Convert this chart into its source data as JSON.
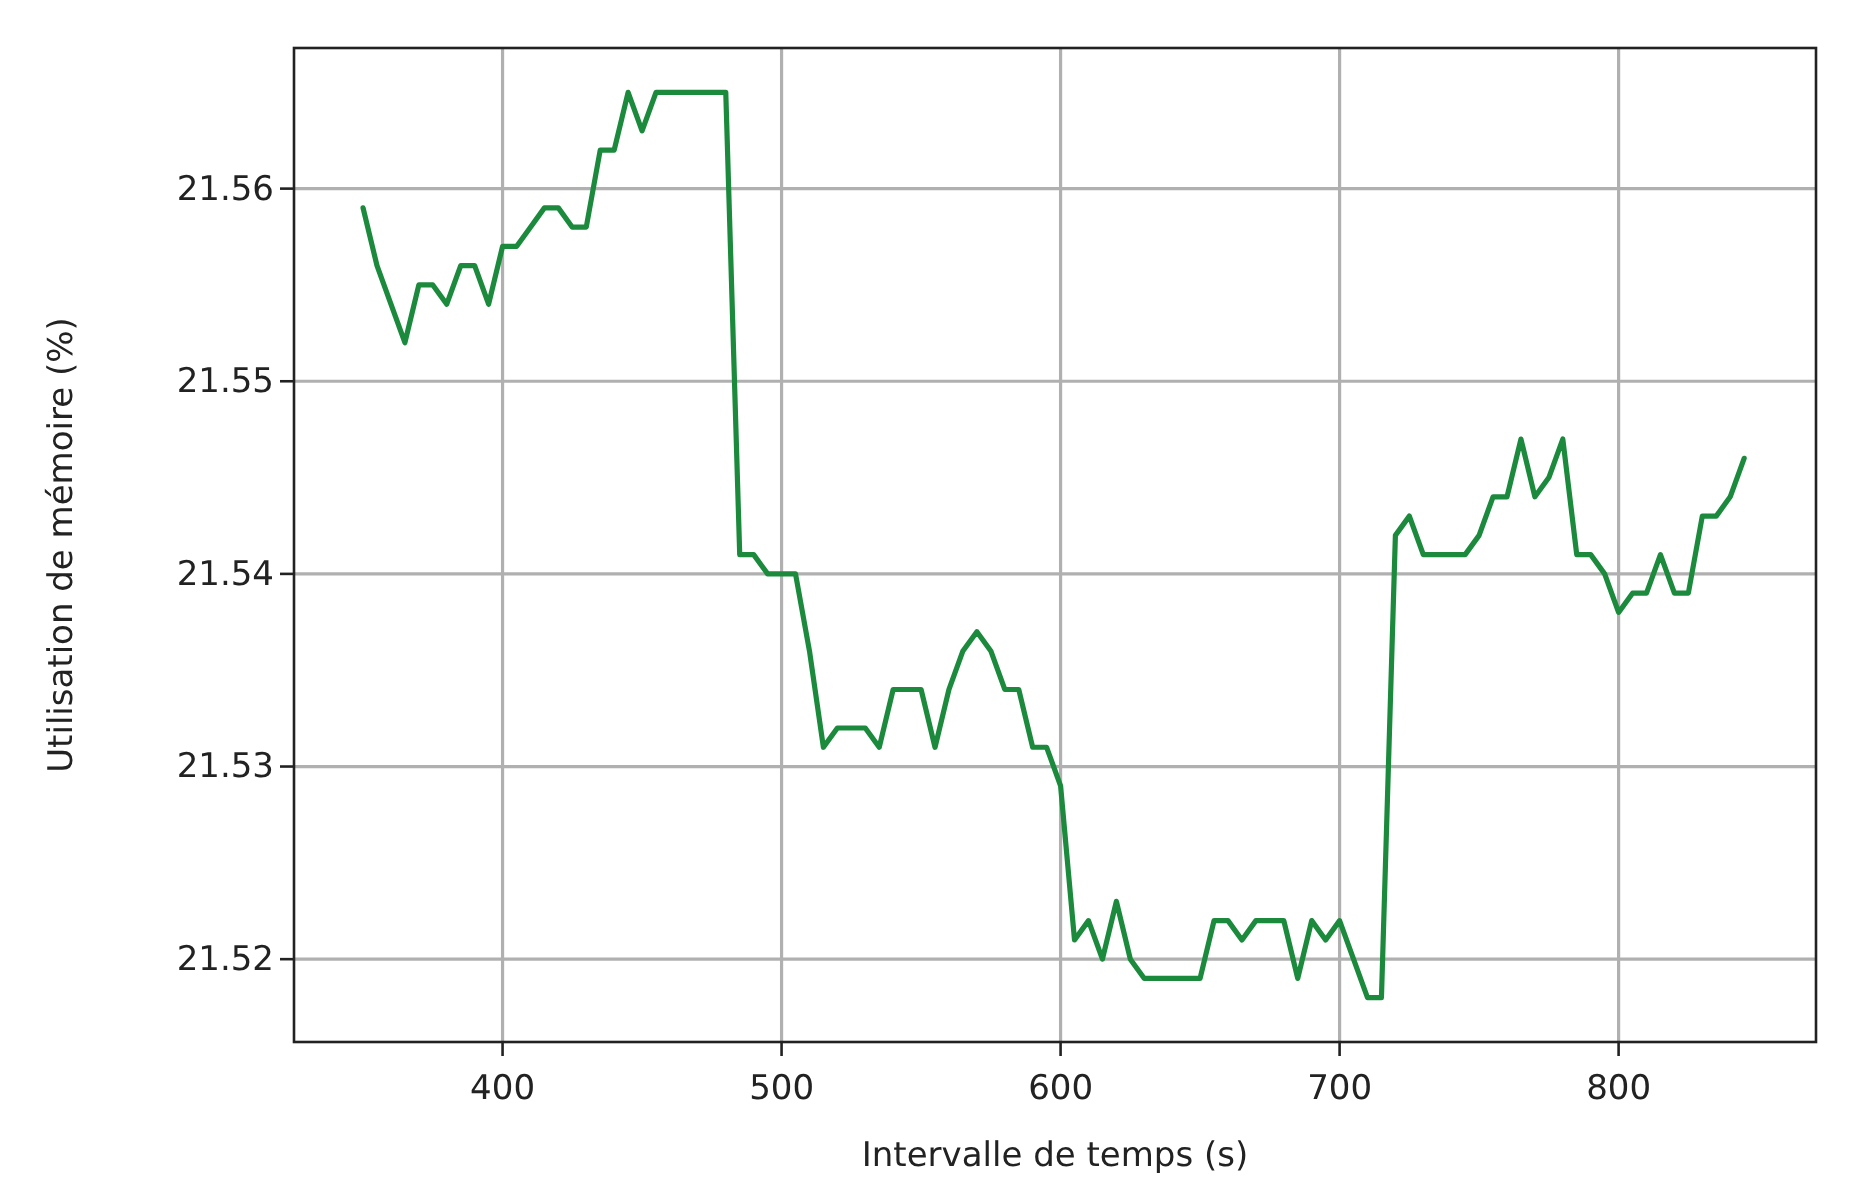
{
  "chart_data": {
    "type": "line",
    "xlabel": "Intervalle de temps (s)",
    "ylabel": "Utilisation de mémoire (%)",
    "x": [
      350,
      355,
      360,
      365,
      370,
      375,
      380,
      385,
      390,
      395,
      400,
      405,
      410,
      415,
      420,
      425,
      430,
      435,
      440,
      445,
      450,
      455,
      460,
      465,
      470,
      475,
      480,
      485,
      490,
      495,
      500,
      505,
      510,
      515,
      520,
      525,
      530,
      535,
      540,
      545,
      550,
      555,
      560,
      565,
      570,
      575,
      580,
      585,
      590,
      595,
      600,
      605,
      610,
      615,
      620,
      625,
      630,
      635,
      640,
      645,
      650,
      655,
      660,
      665,
      670,
      675,
      680,
      685,
      690,
      695,
      700,
      705,
      710,
      715,
      720,
      725,
      730,
      735,
      740,
      745,
      750,
      755,
      760,
      765,
      770,
      775,
      780,
      785,
      790,
      795,
      800,
      805,
      810,
      815,
      820,
      825,
      830,
      835,
      840,
      845
    ],
    "series": [
      {
        "color": "#1b8a3c",
        "values": [
          21.559,
          21.556,
          21.554,
          21.552,
          21.555,
          21.555,
          21.554,
          21.556,
          21.556,
          21.554,
          21.557,
          21.557,
          21.558,
          21.559,
          21.559,
          21.558,
          21.558,
          21.562,
          21.562,
          21.565,
          21.563,
          21.565,
          21.565,
          21.565,
          21.565,
          21.565,
          21.565,
          21.541,
          21.541,
          21.54,
          21.54,
          21.54,
          21.536,
          21.531,
          21.532,
          21.532,
          21.532,
          21.531,
          21.534,
          21.534,
          21.534,
          21.531,
          21.534,
          21.536,
          21.537,
          21.536,
          21.534,
          21.534,
          21.531,
          21.531,
          21.529,
          21.521,
          21.522,
          21.52,
          21.523,
          21.52,
          21.519,
          21.519,
          21.519,
          21.519,
          21.519,
          21.522,
          21.522,
          21.521,
          21.522,
          21.522,
          21.522,
          21.519,
          21.522,
          21.521,
          21.522,
          21.52,
          21.518,
          21.518,
          21.542,
          21.543,
          21.541,
          21.541,
          21.541,
          21.541,
          21.542,
          21.544,
          21.544,
          21.547,
          21.544,
          21.545,
          21.547,
          21.541,
          21.541,
          21.54,
          21.538,
          21.539,
          21.539,
          21.541,
          21.539,
          21.539,
          21.543,
          21.543,
          21.544,
          21.546
        ]
      }
    ],
    "xlim": [
      325.25,
      870.75
    ],
    "ylim": [
      21.5157,
      21.5673
    ],
    "xticks": [
      400,
      500,
      600,
      700,
      800
    ],
    "yticks": [
      21.52,
      21.53,
      21.54,
      21.55,
      21.56
    ],
    "grid": true,
    "line_style": "solid"
  }
}
